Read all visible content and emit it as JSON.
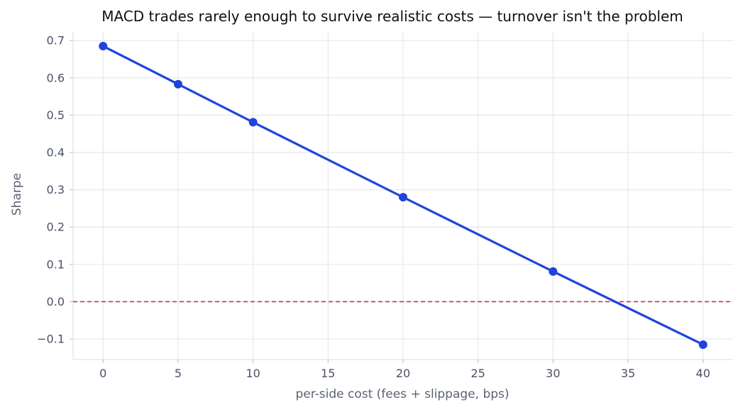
{
  "chart_data": {
    "type": "line",
    "title": "MACD trades rarely enough to survive realistic costs — turnover isn't the problem",
    "xlabel": "per-side cost (fees + slippage, bps)",
    "ylabel": "Sharpe",
    "x": [
      0,
      5,
      10,
      20,
      30,
      40
    ],
    "series": [
      {
        "values": [
          0.685,
          0.583,
          0.481,
          0.28,
          0.081,
          -0.115
        ],
        "color": "#1f44dd"
      }
    ],
    "xlim": [
      -2,
      42
    ],
    "ylim": [
      -0.155,
      0.725
    ],
    "xticks": [
      0,
      5,
      10,
      15,
      20,
      25,
      30,
      35,
      40
    ],
    "xtick_labels": [
      "0",
      "5",
      "10",
      "15",
      "20",
      "25",
      "30",
      "35",
      "40"
    ],
    "yticks": [
      -0.1,
      0.0,
      0.1,
      0.2,
      0.3,
      0.4,
      0.5,
      0.6,
      0.7
    ],
    "ytick_labels": [
      "−0.1",
      "0.0",
      "0.1",
      "0.2",
      "0.3",
      "0.4",
      "0.5",
      "0.6",
      "0.7"
    ],
    "reference_line": {
      "y": 0,
      "style": "dashed",
      "color": "#b83b4a"
    },
    "grid": true
  }
}
